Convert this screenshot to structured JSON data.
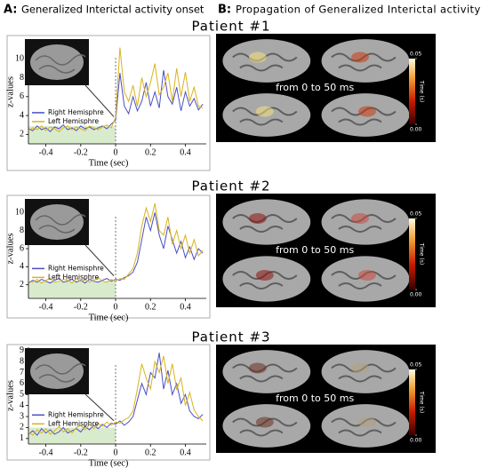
{
  "panel_a": {
    "label": "A:",
    "title": "Generalized Interictal activity onset"
  },
  "panel_b": {
    "label": "B:",
    "title": "Propagation of Generalized Interictal activity"
  },
  "chart_data": [
    {
      "type": "line",
      "title": "Patient #1",
      "x_label": "Time (sec)",
      "y_label": "z-values",
      "x": [
        -0.5,
        -0.475,
        -0.45,
        -0.425,
        -0.4,
        -0.375,
        -0.35,
        -0.325,
        -0.3,
        -0.275,
        -0.25,
        -0.225,
        -0.2,
        -0.175,
        -0.15,
        -0.125,
        -0.1,
        -0.075,
        -0.05,
        -0.025,
        0,
        0.025,
        0.05,
        0.075,
        0.1,
        0.125,
        0.15,
        0.175,
        0.2,
        0.225,
        0.25,
        0.275,
        0.3,
        0.325,
        0.35,
        0.375,
        0.4,
        0.425,
        0.45,
        0.475,
        0.5
      ],
      "series": [
        {
          "name": "Right Hemisphre",
          "color": "#4a4fc4",
          "values": [
            2.6,
            2.4,
            2.9,
            2.5,
            2.7,
            2.3,
            2.8,
            2.6,
            3.0,
            2.5,
            2.7,
            2.4,
            2.9,
            2.6,
            2.8,
            2.5,
            2.7,
            2.9,
            2.6,
            3.1,
            3.5,
            8.5,
            5.0,
            4.2,
            6.0,
            4.5,
            5.5,
            7.5,
            5.0,
            6.5,
            4.8,
            8.8,
            6.0,
            5.2,
            7.0,
            4.5,
            6.5,
            5.0,
            5.8,
            4.6,
            5.2
          ]
        },
        {
          "name": "Left Hemisphre",
          "color": "#d9b31c",
          "values": [
            2.4,
            2.7,
            2.5,
            2.9,
            2.4,
            2.8,
            2.6,
            2.3,
            2.7,
            2.9,
            2.5,
            2.8,
            2.6,
            2.4,
            2.9,
            2.7,
            2.5,
            2.8,
            3.0,
            2.7,
            3.8,
            11.2,
            6.5,
            5.5,
            7.2,
            5.0,
            8.0,
            6.0,
            7.5,
            9.5,
            6.2,
            7.0,
            8.5,
            5.5,
            9.0,
            6.0,
            8.6,
            5.5,
            7.0,
            5.0,
            4.8
          ]
        }
      ],
      "xlim": [
        -0.5,
        0.52
      ],
      "xticks": [
        -0.4,
        -0.2,
        0,
        0.2,
        0.4
      ],
      "ylim": [
        1,
        12
      ],
      "yticks": [
        2,
        4,
        6,
        8,
        10
      ],
      "brain_annotation": "from 0 to 50 ms",
      "colorbar": {
        "label": "Time (s)",
        "ticks": [
          0.05,
          {
            "value": 0,
            "label": "0.00"
          }
        ]
      }
    },
    {
      "type": "line",
      "title": "Patient #2",
      "x_label": "Time (sec)",
      "y_label": "z-values",
      "x": [
        -0.5,
        -0.475,
        -0.45,
        -0.425,
        -0.4,
        -0.375,
        -0.35,
        -0.325,
        -0.3,
        -0.275,
        -0.25,
        -0.225,
        -0.2,
        -0.175,
        -0.15,
        -0.125,
        -0.1,
        -0.075,
        -0.05,
        -0.025,
        0,
        0.025,
        0.05,
        0.075,
        0.1,
        0.125,
        0.15,
        0.175,
        0.2,
        0.225,
        0.25,
        0.275,
        0.3,
        0.325,
        0.35,
        0.375,
        0.4,
        0.425,
        0.45,
        0.475,
        0.5
      ],
      "series": [
        {
          "name": "Right Hemisphre",
          "color": "#4a4fc4",
          "values": [
            2.2,
            2.5,
            2.3,
            2.6,
            2.4,
            2.2,
            2.5,
            2.7,
            2.3,
            2.4,
            2.6,
            2.3,
            2.5,
            2.2,
            2.6,
            2.4,
            2.3,
            2.5,
            2.7,
            2.4,
            2.6,
            2.5,
            2.8,
            3.0,
            3.4,
            4.5,
            7.0,
            9.5,
            8.0,
            10.0,
            7.5,
            6.0,
            8.5,
            7.0,
            5.5,
            6.8,
            5.0,
            6.2,
            4.8,
            6.0,
            5.5
          ]
        },
        {
          "name": "Left Hemisphre",
          "color": "#d9b31c",
          "values": [
            2.4,
            2.3,
            2.6,
            2.2,
            2.5,
            2.7,
            2.3,
            2.4,
            2.6,
            2.5,
            2.2,
            2.7,
            2.4,
            2.6,
            2.3,
            2.5,
            2.8,
            2.4,
            2.3,
            2.6,
            2.4,
            2.7,
            2.6,
            3.2,
            3.8,
            5.5,
            8.5,
            10.5,
            9.0,
            11.0,
            8.0,
            7.5,
            9.5,
            6.5,
            8.0,
            6.0,
            7.5,
            5.5,
            7.0,
            5.2,
            5.8
          ]
        }
      ],
      "xlim": [
        -0.5,
        0.52
      ],
      "xticks": [
        -0.4,
        -0.2,
        0,
        0.2,
        0.4
      ],
      "ylim": [
        0.5,
        11.5
      ],
      "yticks": [
        2,
        4,
        6,
        8,
        10
      ],
      "brain_annotation": "from 0 to 50 ms",
      "colorbar": {
        "label": "Time (s)",
        "ticks": [
          0.05,
          {
            "value": 0,
            "label": "0.00"
          }
        ]
      }
    },
    {
      "type": "line",
      "title": "Patient #3",
      "x_label": "Time (sec)",
      "y_label": "z-values",
      "x": [
        -0.5,
        -0.475,
        -0.45,
        -0.425,
        -0.4,
        -0.375,
        -0.35,
        -0.325,
        -0.3,
        -0.275,
        -0.25,
        -0.225,
        -0.2,
        -0.175,
        -0.15,
        -0.125,
        -0.1,
        -0.075,
        -0.05,
        -0.025,
        0,
        0.025,
        0.05,
        0.075,
        0.1,
        0.125,
        0.15,
        0.175,
        0.2,
        0.225,
        0.25,
        0.275,
        0.3,
        0.325,
        0.35,
        0.375,
        0.4,
        0.425,
        0.45,
        0.475,
        0.5
      ],
      "series": [
        {
          "name": "Right Hemisphre",
          "color": "#4a4fc4",
          "values": [
            1.4,
            1.7,
            1.3,
            1.9,
            1.5,
            1.8,
            1.4,
            1.6,
            2.0,
            1.5,
            1.7,
            1.9,
            1.6,
            2.1,
            1.8,
            2.2,
            1.9,
            2.3,
            2.0,
            2.4,
            2.3,
            2.6,
            2.2,
            2.5,
            3.0,
            4.5,
            6.0,
            5.0,
            7.0,
            6.5,
            8.8,
            5.5,
            7.2,
            5.0,
            6.0,
            4.2,
            5.0,
            3.5,
            3.0,
            2.8,
            3.2
          ]
        },
        {
          "name": "Left Hemisphre",
          "color": "#d9b31c",
          "values": [
            1.6,
            1.3,
            1.8,
            1.5,
            1.9,
            1.4,
            1.7,
            2.1,
            1.6,
            1.9,
            1.5,
            2.0,
            2.2,
            1.8,
            2.3,
            1.9,
            2.4,
            2.1,
            2.5,
            2.2,
            2.5,
            2.4,
            2.7,
            2.9,
            3.5,
            5.5,
            7.8,
            6.5,
            5.5,
            8.0,
            7.0,
            8.5,
            6.0,
            7.8,
            5.5,
            6.5,
            4.0,
            5.2,
            3.6,
            3.0,
            2.6
          ]
        }
      ],
      "xlim": [
        -0.5,
        0.52
      ],
      "xticks": [
        -0.4,
        -0.2,
        0,
        0.2,
        0.4
      ],
      "ylim": [
        0.5,
        9.3
      ],
      "yticks": [
        1,
        2,
        3,
        4,
        5,
        6,
        7,
        8,
        9
      ],
      "brain_annotation": "from 0 to 50 ms",
      "colorbar": {
        "label": "Time (s)",
        "ticks": [
          0.05,
          {
            "value": 0,
            "label": "0.00"
          }
        ]
      }
    }
  ]
}
